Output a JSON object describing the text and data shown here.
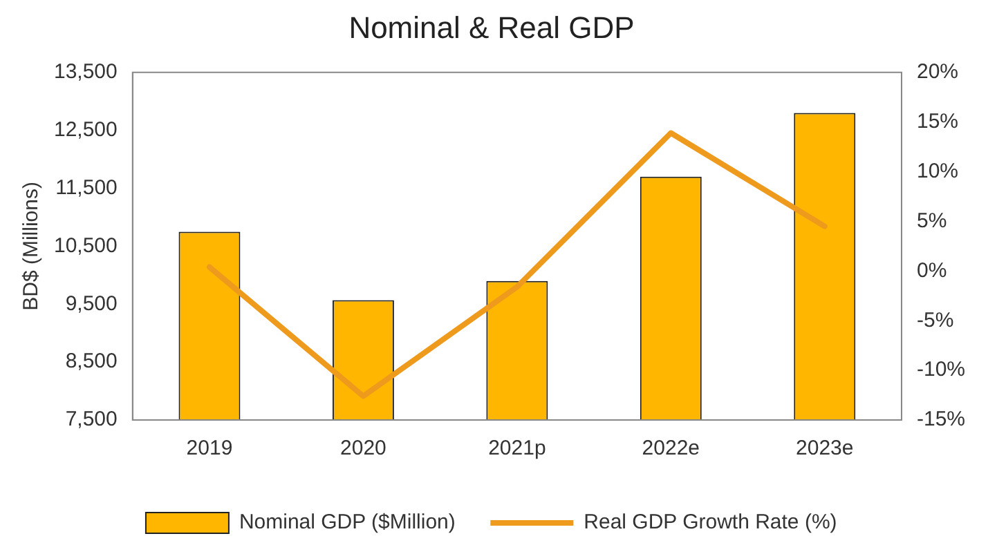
{
  "chart_data": {
    "type": "bar",
    "title": "Nominal & Real GDP",
    "ylabel": "BD$ (Millions)",
    "categories": [
      "2019",
      "2020",
      "2021p",
      "2022e",
      "2023e"
    ],
    "series": [
      {
        "name": "Nominal GDP ($Million)",
        "color": "#ffb600",
        "values": [
          10750,
          9570,
          9900,
          11700,
          12800
        ]
      },
      {
        "name": "Real GDP Growth Rate (%)",
        "type": "line",
        "axis": "y2",
        "color": "#ee9a1c",
        "values": [
          0.4,
          -12.6,
          -1.6,
          13.9,
          4.5
        ]
      }
    ],
    "ylim": [
      7500,
      13500
    ],
    "yticks": [
      {
        "value": 7500,
        "label": "7,500"
      },
      {
        "value": 8500,
        "label": "8,500"
      },
      {
        "value": 9500,
        "label": "9,500"
      },
      {
        "value": 10500,
        "label": "10,500"
      },
      {
        "value": 11500,
        "label": "11,500"
      },
      {
        "value": 12500,
        "label": "12,500"
      },
      {
        "value": 13500,
        "label": "13,500"
      }
    ],
    "y2lim": [
      -15,
      20
    ],
    "y2ticks": [
      {
        "value": -15,
        "label": "-15%"
      },
      {
        "value": -10,
        "label": "-10%"
      },
      {
        "value": -5,
        "label": "-5%"
      },
      {
        "value": 0,
        "label": "0%"
      },
      {
        "value": 5,
        "label": "5%"
      },
      {
        "value": 10,
        "label": "10%"
      },
      {
        "value": 15,
        "label": "15%"
      },
      {
        "value": 20,
        "label": "20%"
      }
    ],
    "grid": false,
    "legend": "bottom",
    "marker": "none",
    "line_style": "solid"
  }
}
